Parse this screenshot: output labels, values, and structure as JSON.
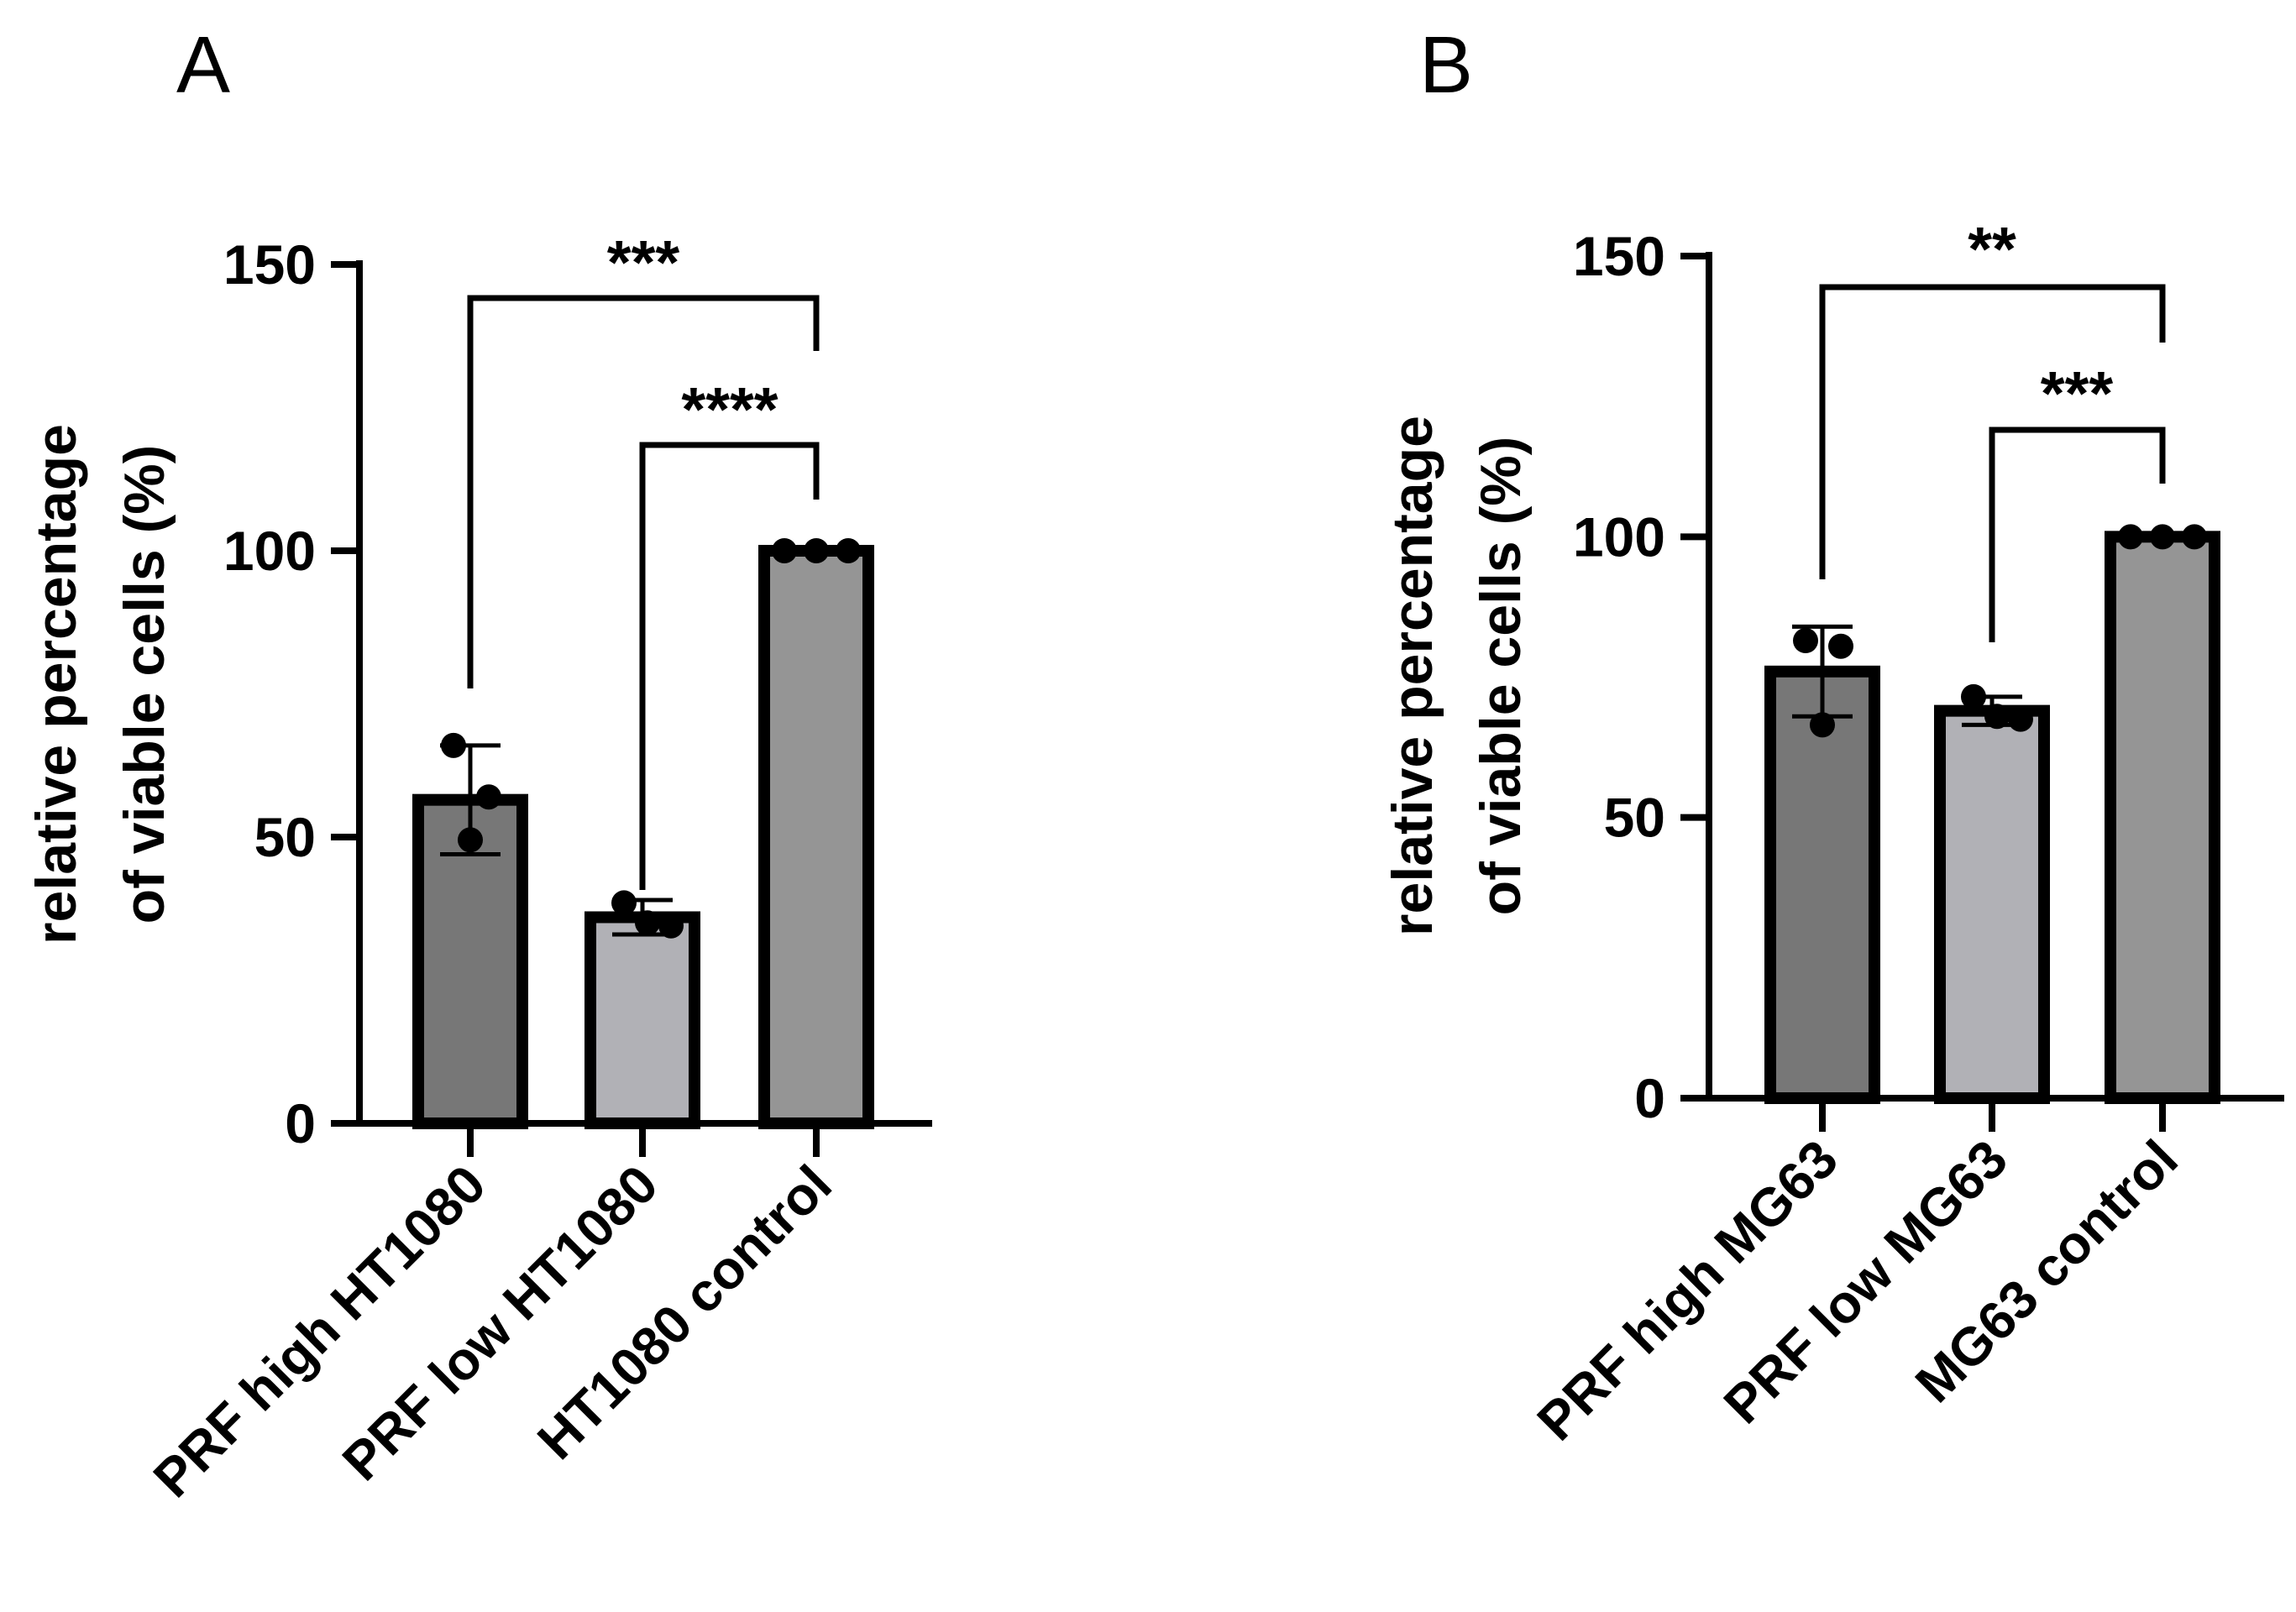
{
  "chart_data": [
    {
      "panel": "A",
      "type": "bar",
      "title": "",
      "xlabel": "",
      "ylabel_lines": [
        "relative percentage",
        "of viable cells (%)"
      ],
      "ylim": [
        0,
        150
      ],
      "yticks": [
        0,
        50,
        100,
        150
      ],
      "ytick_labels": [
        "0",
        "50",
        "100",
        "150"
      ],
      "categories": [
        "PRF high HT1080",
        "PRF low HT1080",
        "HT1080 control"
      ],
      "values": [
        56.5,
        36,
        100
      ],
      "errors": [
        9.5,
        3,
        0
      ],
      "points": [
        [
          66,
          57,
          49.5
        ],
        [
          38.5,
          35,
          34.5
        ],
        [
          100,
          100,
          100
        ]
      ],
      "colors": [
        "#777777",
        "#b1b1b6",
        "#959595"
      ],
      "comparisons": [
        {
          "from": 0,
          "to": 2,
          "label": "***"
        },
        {
          "from": 1,
          "to": 2,
          "label": "****"
        }
      ]
    },
    {
      "panel": "B",
      "type": "bar",
      "title": "",
      "xlabel": "",
      "ylabel_lines": [
        "relative percentage",
        "of viable cells (%)"
      ],
      "ylim": [
        0,
        150
      ],
      "yticks": [
        0,
        50,
        100,
        150
      ],
      "ytick_labels": [
        "0",
        "50",
        "100",
        "150"
      ],
      "categories": [
        "PRF high MG63",
        "PRF low MG63",
        "MG63 control"
      ],
      "values": [
        76,
        69,
        100
      ],
      "errors": [
        8,
        2.5,
        0
      ],
      "points": [
        [
          81.5,
          80.5,
          66.5
        ],
        [
          71.5,
          68,
          67.5
        ],
        [
          100,
          100,
          100
        ]
      ],
      "colors": [
        "#777777",
        "#b1b1b6",
        "#959595"
      ],
      "comparisons": [
        {
          "from": 0,
          "to": 2,
          "label": "**"
        },
        {
          "from": 1,
          "to": 2,
          "label": "***"
        }
      ]
    }
  ]
}
